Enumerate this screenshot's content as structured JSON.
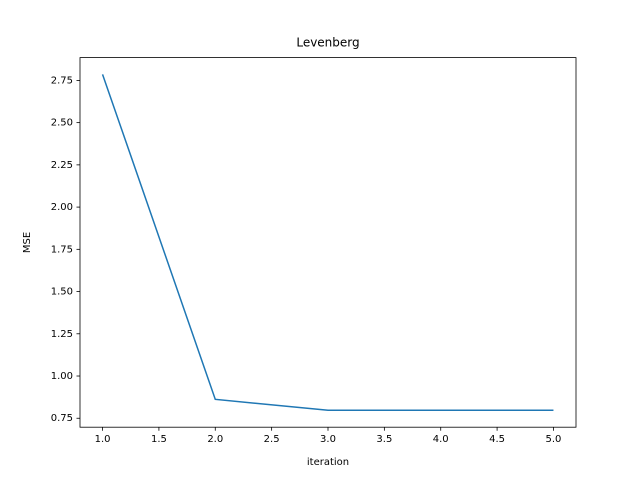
{
  "chart_data": {
    "type": "line",
    "title": "Levenberg",
    "x_label": "iteration",
    "y_label": "MSE",
    "x": [
      1,
      2,
      3,
      4,
      5
    ],
    "series": [
      {
        "color": "#1f77b4",
        "values": [
          2.786,
          0.862,
          0.797,
          0.797,
          0.797
        ]
      }
    ],
    "xlim": [
      0.8,
      5.2
    ],
    "xticks": [
      {
        "value": 1,
        "label": "1.0"
      },
      {
        "value": 1.5,
        "label": "1.5"
      },
      {
        "value": 2,
        "label": "2.0"
      },
      {
        "value": 2.5,
        "label": "2.5"
      },
      {
        "value": 3,
        "label": "3.0"
      },
      {
        "value": 3.5,
        "label": "3.5"
      },
      {
        "value": 4,
        "label": "4.0"
      },
      {
        "value": 4.5,
        "label": "4.5"
      },
      {
        "value": 5,
        "label": "5.0"
      }
    ],
    "ylim": [
      0.697,
      2.885
    ],
    "yticks": [
      0.75,
      {
        "value": 1,
        "label": "1.00"
      },
      1.25,
      {
        "value": 1.5,
        "label": "1.50"
      },
      1.75,
      {
        "value": 2,
        "label": "2.00"
      },
      2.25,
      {
        "value": 2.5,
        "label": "2.50"
      },
      2.75
    ],
    "grid": false
  }
}
